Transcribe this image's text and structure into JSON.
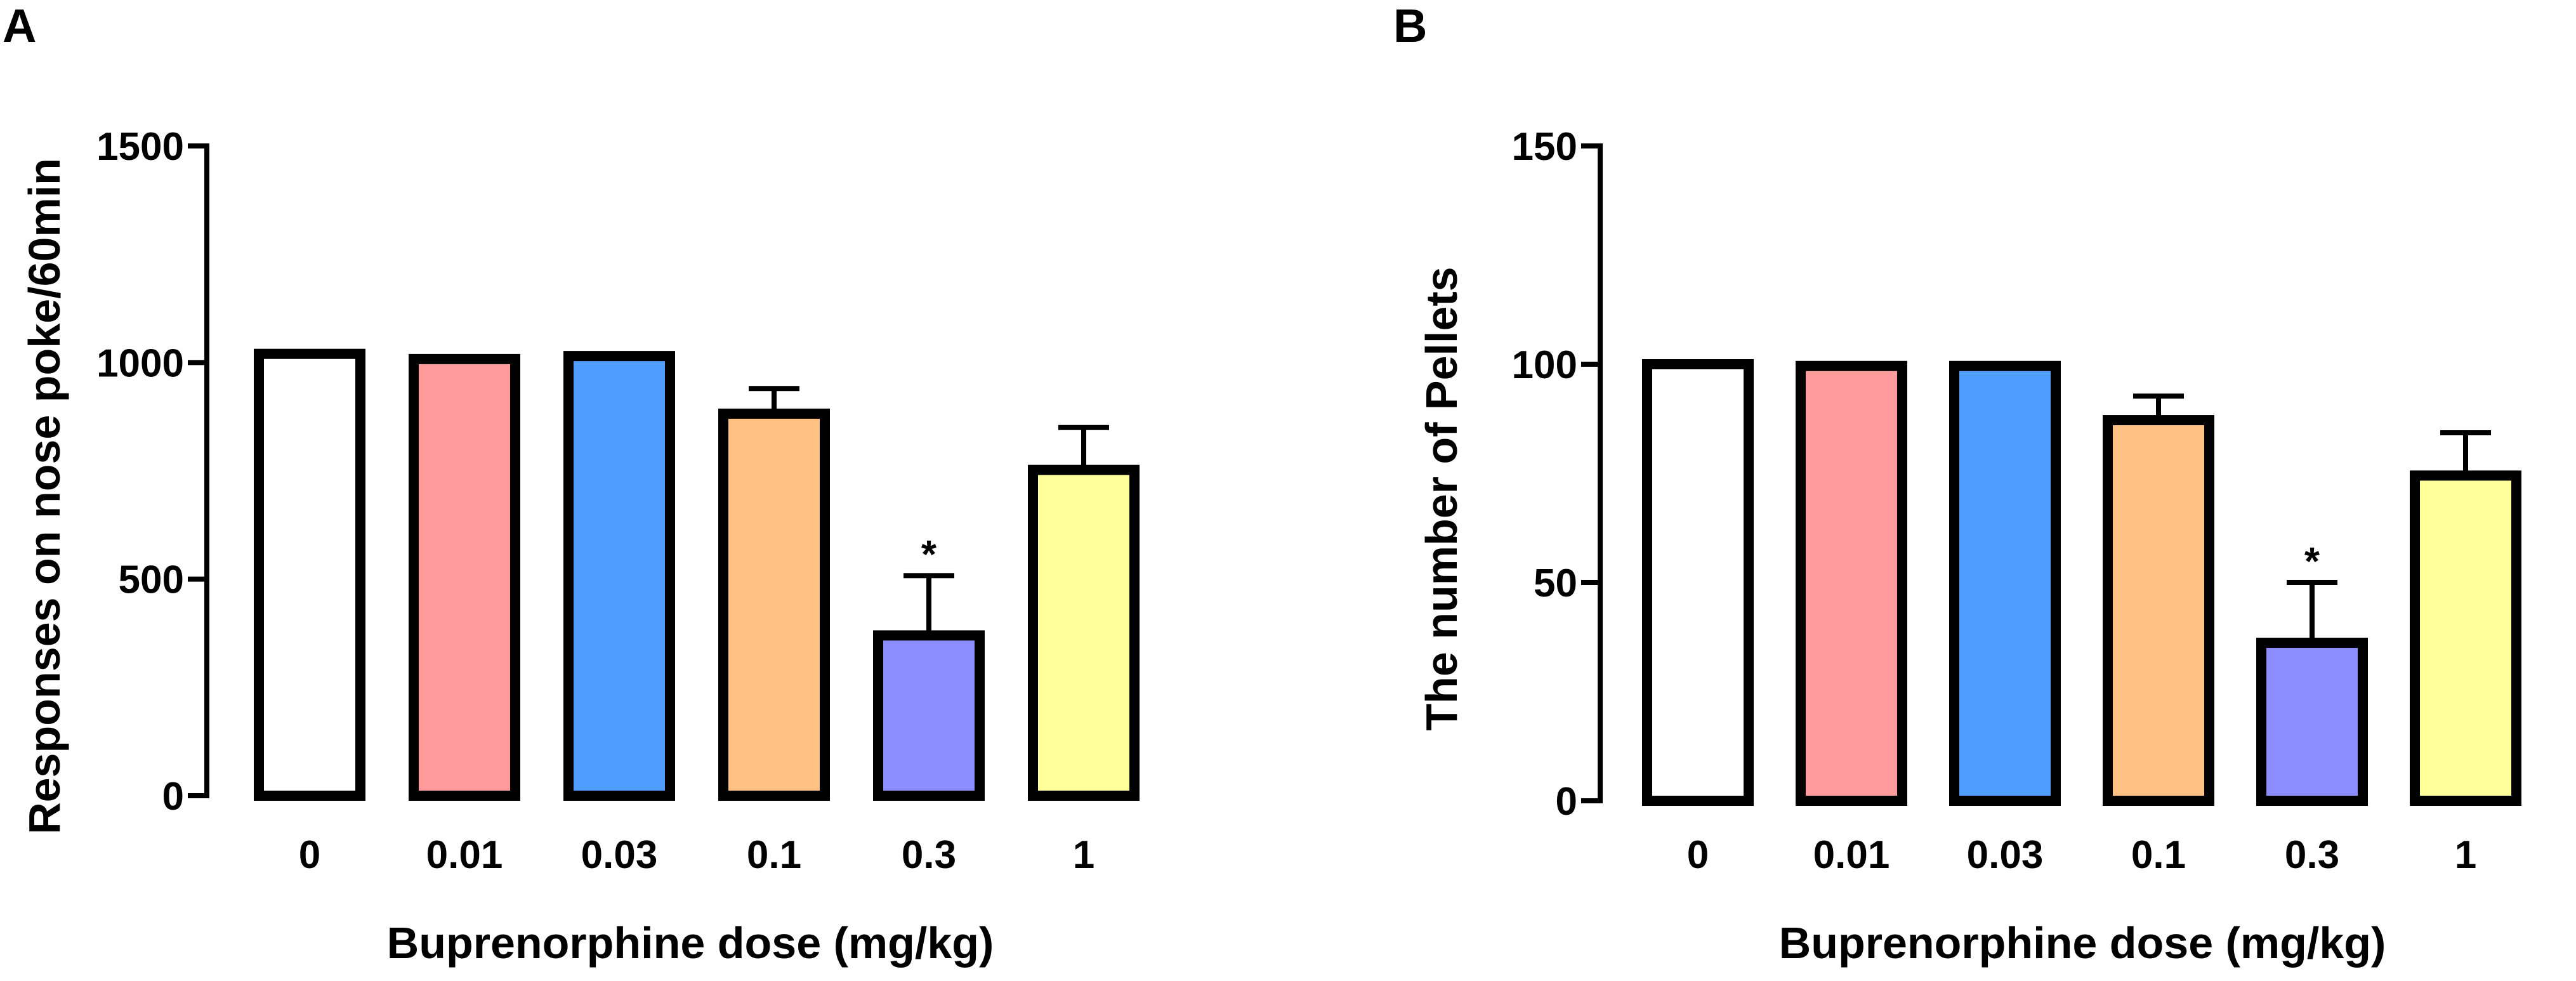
{
  "chart_data": [
    {
      "panel": "A",
      "type": "bar",
      "categories": [
        "0",
        "0.01",
        "0.03",
        "0.1",
        "0.3",
        "1"
      ],
      "values": [
        1020,
        1008,
        1015,
        882,
        370,
        752
      ],
      "errors": [
        0,
        0,
        0,
        58,
        138,
        98
      ],
      "colors": [
        "#ffffff",
        "#ff9b9b",
        "#4f9dff",
        "#ffc184",
        "#8d8dff",
        "#ffff99"
      ],
      "significance": [
        "",
        "",
        "",
        "",
        "*",
        ""
      ],
      "title": "",
      "xlabel": "Buprenorphine dose (mg/kg)",
      "ylabel": "Responses on nose poke/60min",
      "ylim": [
        0,
        1500
      ],
      "yticks": [
        "0",
        "500",
        "1000",
        "1500"
      ],
      "ytick_values": [
        0,
        500,
        1000,
        1500
      ],
      "grid": false
    },
    {
      "panel": "B",
      "type": "bar",
      "categories": [
        "0",
        "0.01",
        "0.03",
        "0.1",
        "0.3",
        "1"
      ],
      "values": [
        100,
        99.6,
        99.6,
        87.2,
        36.2,
        74.5
      ],
      "errors": [
        0,
        0,
        0,
        5.5,
        13.8,
        9.8
      ],
      "colors": [
        "#ffffff",
        "#ff9b9b",
        "#4f9dff",
        "#ffc184",
        "#8d8dff",
        "#ffff99"
      ],
      "significance": [
        "",
        "",
        "",
        "",
        "*",
        ""
      ],
      "title": "",
      "xlabel": "Buprenorphine dose (mg/kg)",
      "ylabel": "The number of Pellets",
      "ylim": [
        0,
        150
      ],
      "yticks": [
        "0",
        "50",
        "100",
        "150"
      ],
      "ytick_values": [
        0,
        50,
        100,
        150
      ],
      "grid": false
    }
  ]
}
